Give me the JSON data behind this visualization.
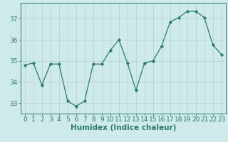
{
  "x": [
    0,
    1,
    2,
    3,
    4,
    5,
    6,
    7,
    8,
    9,
    10,
    11,
    12,
    13,
    14,
    15,
    16,
    17,
    18,
    19,
    20,
    21,
    22,
    23
  ],
  "y": [
    34.8,
    34.9,
    33.85,
    34.85,
    34.85,
    33.1,
    32.85,
    33.1,
    34.85,
    34.85,
    35.5,
    36.0,
    34.9,
    33.6,
    34.9,
    35.0,
    35.7,
    36.85,
    37.05,
    37.35,
    37.35,
    37.05,
    35.75,
    35.3
  ],
  "line_color": "#2d7a6e",
  "marker": "D",
  "marker_size": 2.2,
  "bg_color": "#ceeaea",
  "grid_color": "#b8d4d4",
  "xlabel": "Humidex (Indice chaleur)",
  "ylim": [
    32.5,
    37.75
  ],
  "xlim": [
    -0.5,
    23.5
  ],
  "yticks": [
    33,
    34,
    35,
    36,
    37
  ],
  "xticks": [
    0,
    1,
    2,
    3,
    4,
    5,
    6,
    7,
    8,
    9,
    10,
    11,
    12,
    13,
    14,
    15,
    16,
    17,
    18,
    19,
    20,
    21,
    22,
    23
  ],
  "tick_label_fontsize": 6.5,
  "xlabel_fontsize": 7.5
}
